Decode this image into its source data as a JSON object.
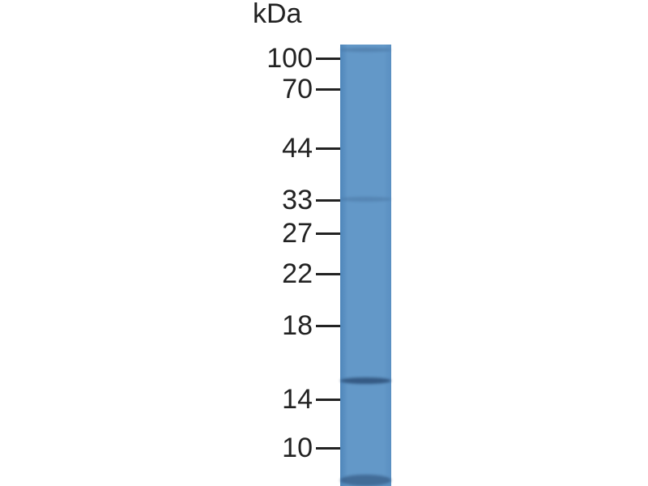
{
  "blot": {
    "unit_label": "kDa",
    "markers": [
      {
        "label": "100",
        "kda": 100
      },
      {
        "label": "70",
        "kda": 70
      },
      {
        "label": "44",
        "kda": 44
      },
      {
        "label": "33",
        "kda": 33
      },
      {
        "label": "27",
        "kda": 27
      },
      {
        "label": "22",
        "kda": 22
      },
      {
        "label": "18",
        "kda": 18
      },
      {
        "label": "14",
        "kda": 14
      },
      {
        "label": "10",
        "kda": 10
      }
    ],
    "lane_color": "#6398c8",
    "band_color": "#2d4f78",
    "bands": [
      {
        "name": "main-band",
        "kda": 15.5,
        "intensity": "strong"
      },
      {
        "name": "faint-band",
        "kda": 33,
        "intensity": "faint"
      },
      {
        "name": "faint-band-top",
        "kda": 100,
        "intensity": "faint"
      },
      {
        "name": "bottom-band",
        "kda": 9,
        "intensity": "medium"
      }
    ]
  }
}
